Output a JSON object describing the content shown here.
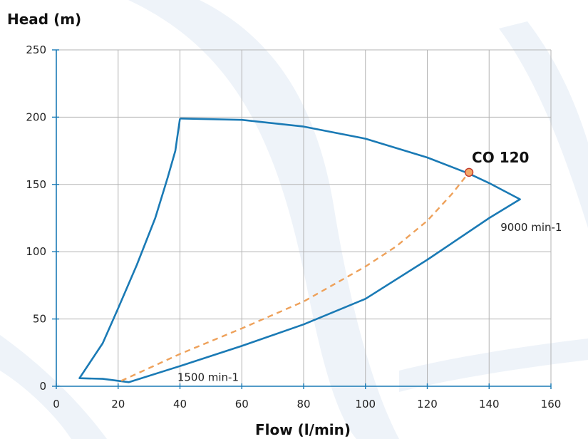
{
  "chart_data": {
    "type": "line",
    "xlabel": "Flow (l/min)",
    "ylabel": "Head (m)",
    "xlim": [
      0,
      160
    ],
    "ylim": [
      0,
      250
    ],
    "x_ticks": [
      0,
      20,
      40,
      60,
      80,
      100,
      120,
      140,
      160
    ],
    "y_ticks": [
      0,
      50,
      100,
      150,
      200,
      250
    ],
    "grid": true,
    "colors": {
      "envelope": "#1a7ab5",
      "system_curve": "#eea15a",
      "grid": "#b3b3b3",
      "point_fill": "#f4a868",
      "point_stroke": "#c0392b",
      "background_swirl": "#e6edf6"
    },
    "envelope": [
      {
        "x": 40,
        "y": 199
      },
      {
        "x": 60,
        "y": 198
      },
      {
        "x": 80,
        "y": 193
      },
      {
        "x": 100,
        "y": 184
      },
      {
        "x": 120,
        "y": 170
      },
      {
        "x": 133.5,
        "y": 158
      },
      {
        "x": 140,
        "y": 151
      },
      {
        "x": 150,
        "y": 139
      },
      {
        "x": 140,
        "y": 125
      },
      {
        "x": 120,
        "y": 94
      },
      {
        "x": 100,
        "y": 65
      },
      {
        "x": 80,
        "y": 46
      },
      {
        "x": 60,
        "y": 30
      },
      {
        "x": 40,
        "y": 15
      },
      {
        "x": 23.5,
        "y": 3
      },
      {
        "x": 15,
        "y": 5.5
      },
      {
        "x": 7.5,
        "y": 6
      },
      {
        "x": 15,
        "y": 32
      },
      {
        "x": 20,
        "y": 58
      },
      {
        "x": 26,
        "y": 90
      },
      {
        "x": 32,
        "y": 125
      },
      {
        "x": 36,
        "y": 155
      },
      {
        "x": 38.5,
        "y": 175
      },
      {
        "x": 40,
        "y": 199
      }
    ],
    "system_curve": [
      {
        "x": 21,
        "y": 4
      },
      {
        "x": 40,
        "y": 24
      },
      {
        "x": 60,
        "y": 43
      },
      {
        "x": 80,
        "y": 63
      },
      {
        "x": 100,
        "y": 89
      },
      {
        "x": 110,
        "y": 104
      },
      {
        "x": 120,
        "y": 123
      },
      {
        "x": 128,
        "y": 143
      },
      {
        "x": 133.5,
        "y": 159
      }
    ],
    "operating_point": {
      "x": 133.5,
      "y": 159,
      "label": "CO 120"
    },
    "annotations": [
      {
        "text": "9000 min-1",
        "x": 146,
        "y": 118
      },
      {
        "text": "1500 min-1",
        "x": 38,
        "y": 5
      }
    ]
  }
}
